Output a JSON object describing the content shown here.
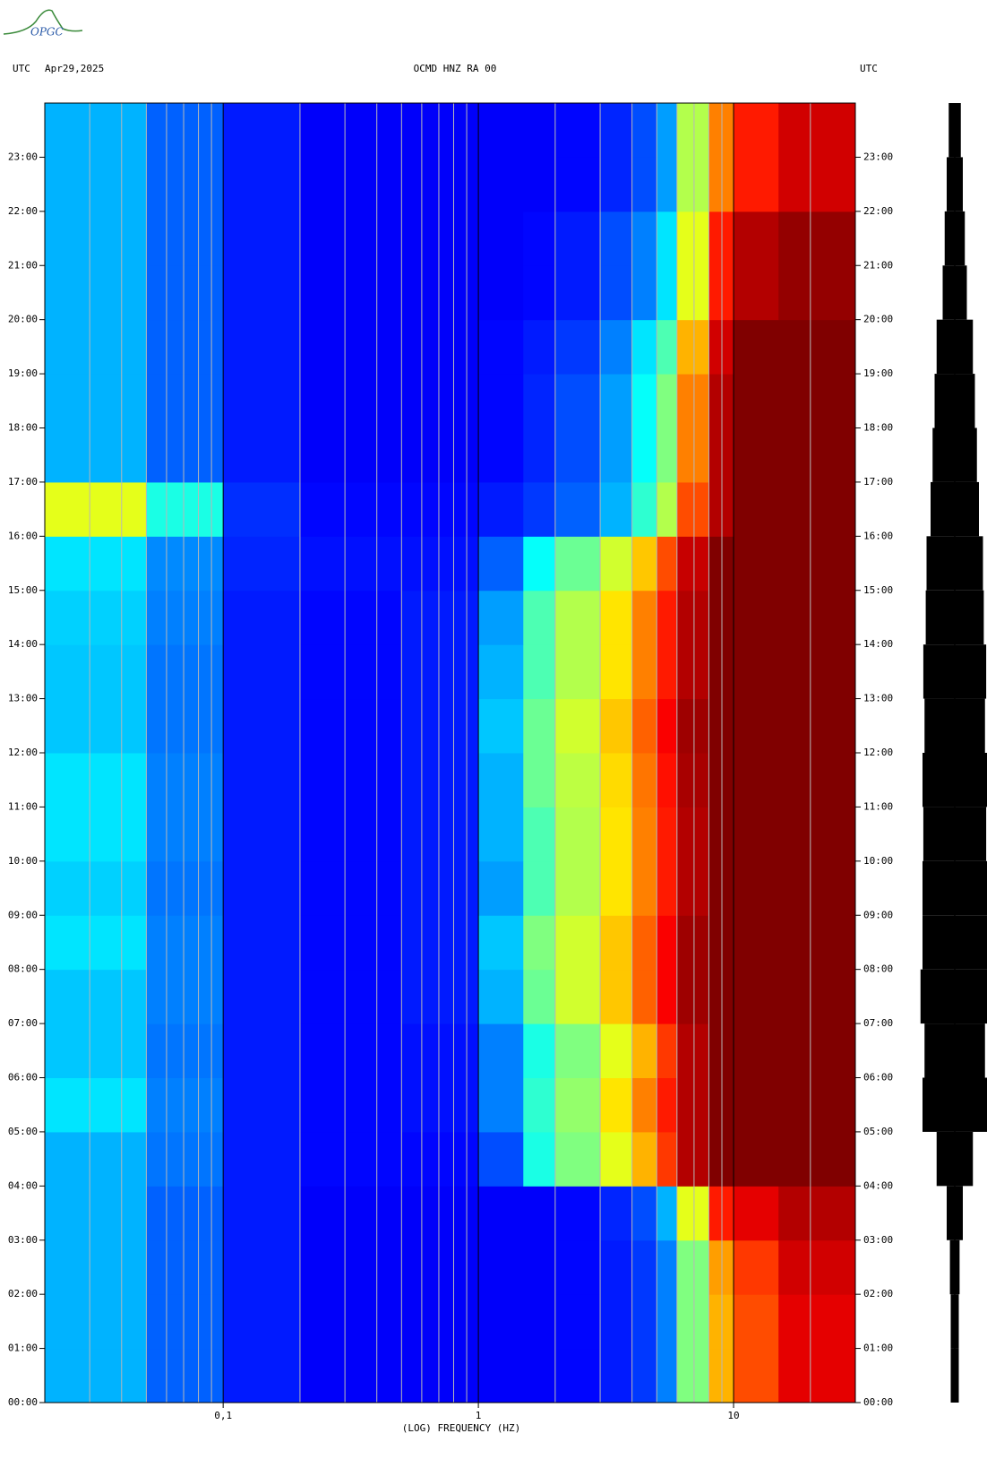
{
  "logo": "OPGC",
  "chart_data": {
    "type": "heatmap",
    "title": "OCMD HNZ RA 00",
    "date": "Apr29,2025",
    "left_label": "UTC",
    "right_label": "UTC",
    "xlabel": "(LOG) FREQUENCY (HZ)",
    "log_x": true,
    "grid": true,
    "colormap": "jet",
    "xlim": [
      0.02,
      30
    ],
    "xticks": [
      {
        "value": 0.1,
        "label": "0,1"
      },
      1,
      10
    ],
    "minor_xticks": [
      0.03,
      0.04,
      0.05,
      0.06,
      0.07,
      0.08,
      0.09,
      0.2,
      0.3,
      0.4,
      0.5,
      0.6,
      0.7,
      0.8,
      0.9,
      2,
      3,
      4,
      5,
      6,
      7,
      8,
      9,
      20
    ],
    "ylim": [
      0,
      24
    ],
    "yticks": [
      {
        "value": 0,
        "label": "00:00"
      },
      {
        "value": 1,
        "label": "01:00"
      },
      {
        "value": 2,
        "label": "02:00"
      },
      {
        "value": 3,
        "label": "03:00"
      },
      {
        "value": 4,
        "label": "04:00"
      },
      {
        "value": 5,
        "label": "05:00"
      },
      {
        "value": 6,
        "label": "06:00"
      },
      {
        "value": 7,
        "label": "07:00"
      },
      {
        "value": 8,
        "label": "08:00"
      },
      {
        "value": 9,
        "label": "09:00"
      },
      {
        "value": 10,
        "label": "10:00"
      },
      {
        "value": 11,
        "label": "11:00"
      },
      {
        "value": 12,
        "label": "12:00"
      },
      {
        "value": 13,
        "label": "13:00"
      },
      {
        "value": 14,
        "label": "14:00"
      },
      {
        "value": 15,
        "label": "15:00"
      },
      {
        "value": 16,
        "label": "16:00"
      },
      {
        "value": 17,
        "label": "17:00"
      },
      {
        "value": 18,
        "label": "18:00"
      },
      {
        "value": 19,
        "label": "19:00"
      },
      {
        "value": 20,
        "label": "20:00"
      },
      {
        "value": 21,
        "label": "21:00"
      },
      {
        "value": 22,
        "label": "22:00"
      },
      {
        "value": 23,
        "label": "23:00"
      }
    ],
    "x_bins": [
      0.02,
      0.05,
      0.1,
      0.2,
      0.5,
      1,
      1.5,
      2,
      3,
      4,
      5,
      6,
      8,
      10,
      15,
      30
    ],
    "zlim": [
      0,
      1
    ],
    "z": [
      [
        0.3,
        0.22,
        0.15,
        0.12,
        0.12,
        0.12,
        0.12,
        0.13,
        0.15,
        0.18,
        0.25,
        0.5,
        0.7,
        0.8,
        0.9
      ],
      [
        0.3,
        0.22,
        0.15,
        0.12,
        0.12,
        0.12,
        0.12,
        0.13,
        0.15,
        0.18,
        0.25,
        0.5,
        0.7,
        0.8,
        0.9
      ],
      [
        0.3,
        0.22,
        0.15,
        0.12,
        0.12,
        0.12,
        0.12,
        0.13,
        0.15,
        0.18,
        0.25,
        0.5,
        0.72,
        0.82,
        0.92
      ],
      [
        0.3,
        0.22,
        0.15,
        0.12,
        0.12,
        0.12,
        0.12,
        0.13,
        0.16,
        0.2,
        0.3,
        0.6,
        0.85,
        0.9,
        0.95
      ],
      [
        0.3,
        0.24,
        0.15,
        0.13,
        0.13,
        0.2,
        0.4,
        0.5,
        0.6,
        0.7,
        0.82,
        0.95,
        1,
        1,
        1
      ],
      [
        0.35,
        0.25,
        0.15,
        0.13,
        0.14,
        0.25,
        0.42,
        0.52,
        0.65,
        0.75,
        0.85,
        0.95,
        1,
        1,
        1
      ],
      [
        0.32,
        0.24,
        0.15,
        0.13,
        0.14,
        0.25,
        0.4,
        0.5,
        0.6,
        0.7,
        0.82,
        0.95,
        1,
        1,
        1
      ],
      [
        0.32,
        0.25,
        0.15,
        0.13,
        0.15,
        0.3,
        0.48,
        0.58,
        0.68,
        0.78,
        0.88,
        0.97,
        1,
        1,
        1
      ],
      [
        0.35,
        0.25,
        0.15,
        0.13,
        0.15,
        0.32,
        0.5,
        0.58,
        0.68,
        0.78,
        0.88,
        0.97,
        1,
        1,
        1
      ],
      [
        0.33,
        0.24,
        0.15,
        0.13,
        0.15,
        0.28,
        0.45,
        0.55,
        0.65,
        0.75,
        0.85,
        0.95,
        1,
        1,
        1
      ],
      [
        0.35,
        0.25,
        0.15,
        0.13,
        0.15,
        0.3,
        0.45,
        0.55,
        0.65,
        0.75,
        0.85,
        0.95,
        1,
        1,
        1
      ],
      [
        0.35,
        0.25,
        0.15,
        0.13,
        0.15,
        0.3,
        0.48,
        0.56,
        0.66,
        0.76,
        0.86,
        0.96,
        1,
        1,
        1
      ],
      [
        0.32,
        0.24,
        0.15,
        0.13,
        0.15,
        0.32,
        0.48,
        0.58,
        0.68,
        0.78,
        0.88,
        0.97,
        1,
        1,
        1
      ],
      [
        0.32,
        0.24,
        0.15,
        0.13,
        0.15,
        0.3,
        0.45,
        0.55,
        0.65,
        0.75,
        0.85,
        0.95,
        1,
        1,
        1
      ],
      [
        0.33,
        0.25,
        0.15,
        0.13,
        0.15,
        0.28,
        0.45,
        0.55,
        0.65,
        0.75,
        0.85,
        0.95,
        1,
        1,
        1
      ],
      [
        0.35,
        0.26,
        0.16,
        0.14,
        0.14,
        0.22,
        0.38,
        0.48,
        0.58,
        0.68,
        0.8,
        0.93,
        1,
        1,
        1
      ],
      [
        0.6,
        0.4,
        0.17,
        0.13,
        0.13,
        0.15,
        0.18,
        0.22,
        0.3,
        0.42,
        0.55,
        0.8,
        0.95,
        1,
        1
      ],
      [
        0.3,
        0.22,
        0.15,
        0.12,
        0.12,
        0.13,
        0.16,
        0.2,
        0.28,
        0.38,
        0.5,
        0.75,
        0.95,
        1,
        1
      ],
      [
        0.3,
        0.22,
        0.15,
        0.12,
        0.12,
        0.13,
        0.16,
        0.2,
        0.28,
        0.38,
        0.5,
        0.75,
        0.95,
        1,
        1
      ],
      [
        0.3,
        0.22,
        0.15,
        0.12,
        0.12,
        0.13,
        0.15,
        0.18,
        0.25,
        0.35,
        0.45,
        0.7,
        0.92,
        1,
        1
      ],
      [
        0.3,
        0.22,
        0.15,
        0.12,
        0.12,
        0.12,
        0.13,
        0.15,
        0.2,
        0.25,
        0.35,
        0.6,
        0.85,
        0.95,
        0.98
      ],
      [
        0.3,
        0.22,
        0.15,
        0.12,
        0.12,
        0.12,
        0.13,
        0.15,
        0.2,
        0.25,
        0.35,
        0.6,
        0.85,
        0.95,
        0.98
      ],
      [
        0.3,
        0.22,
        0.15,
        0.12,
        0.12,
        0.12,
        0.12,
        0.13,
        0.16,
        0.2,
        0.28,
        0.55,
        0.75,
        0.85,
        0.92
      ],
      [
        0.3,
        0.22,
        0.15,
        0.12,
        0.12,
        0.12,
        0.12,
        0.13,
        0.16,
        0.2,
        0.28,
        0.55,
        0.75,
        0.85,
        0.92
      ]
    ],
    "trace_envelope": [
      0.1,
      0.1,
      0.12,
      0.2,
      0.45,
      0.8,
      0.75,
      0.85,
      0.8,
      0.8,
      0.78,
      0.8,
      0.75,
      0.78,
      0.72,
      0.7,
      0.6,
      0.55,
      0.5,
      0.45,
      0.3,
      0.25,
      0.2,
      0.15
    ]
  }
}
